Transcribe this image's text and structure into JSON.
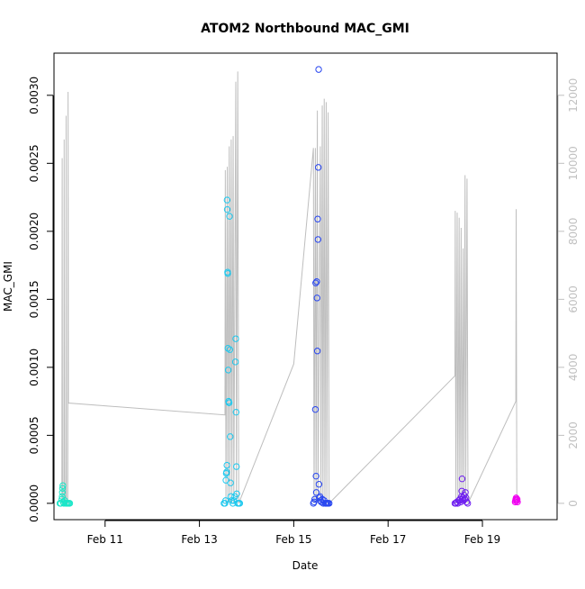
{
  "chart_data": {
    "type": "scatter",
    "title": "ATOM2 Northbound MAC_GMI",
    "xlabel": "Date",
    "ylabel": "MAC_GMI",
    "x_axis": {
      "type": "date",
      "range": [
        "2019-02-09T22:00",
        "2019-02-20T14:00"
      ],
      "ticks": [
        {
          "date": "2019-02-11T00:00",
          "label": "Feb 11"
        },
        {
          "date": "2019-02-13T00:00",
          "label": "Feb 13"
        },
        {
          "date": "2019-02-15T00:00",
          "label": "Feb 15"
        },
        {
          "date": "2019-02-17T00:00",
          "label": "Feb 17"
        },
        {
          "date": "2019-02-19T00:00",
          "label": "Feb 19"
        }
      ]
    },
    "y_left": {
      "range": [
        -0.00012,
        0.00331
      ],
      "ticks": [
        {
          "value": 0,
          "label": "0.0000"
        },
        {
          "value": 0.0005,
          "label": "0.0005"
        },
        {
          "value": 0.001,
          "label": "0.0010"
        },
        {
          "value": 0.0015,
          "label": "0.0015"
        },
        {
          "value": 0.002,
          "label": "0.0020"
        },
        {
          "value": 0.0025,
          "label": "0.0025"
        },
        {
          "value": 0.003,
          "label": "0.0030"
        }
      ]
    },
    "y_right": {
      "range": [
        -480,
        13240
      ],
      "ticks": [
        {
          "value": 0,
          "label": "0"
        },
        {
          "value": 2000,
          "label": "2000"
        },
        {
          "value": 4000,
          "label": "4000"
        },
        {
          "value": 6000,
          "label": "6000"
        },
        {
          "value": 8000,
          "label": "8000"
        },
        {
          "value": 10000,
          "label": "10000"
        },
        {
          "value": 12000,
          "label": "12000"
        }
      ],
      "color": "#c0c0c0"
    },
    "line_series": {
      "axis": "right",
      "color": "#bebebe",
      "points": [
        [
          "2019-02-10T02:00",
          0
        ],
        [
          "2019-02-10T02:10",
          10150
        ],
        [
          "2019-02-10T02:20",
          0
        ],
        [
          "2019-02-10T03:00",
          0
        ],
        [
          "2019-02-10T03:10",
          10700
        ],
        [
          "2019-02-10T03:20",
          0
        ],
        [
          "2019-02-10T04:00",
          0
        ],
        [
          "2019-02-10T04:10",
          11400
        ],
        [
          "2019-02-10T04:20",
          0
        ],
        [
          "2019-02-10T05:00",
          0
        ],
        [
          "2019-02-10T05:10",
          12100
        ],
        [
          "2019-02-10T05:20",
          2950
        ],
        [
          "2019-02-13T13:00",
          2600
        ],
        [
          "2019-02-13T13:10",
          9800
        ],
        [
          "2019-02-13T13:30",
          0
        ],
        [
          "2019-02-13T14:10",
          9900
        ],
        [
          "2019-02-13T14:30",
          0
        ],
        [
          "2019-02-13T15:10",
          10500
        ],
        [
          "2019-02-13T15:30",
          0
        ],
        [
          "2019-02-13T16:10",
          10700
        ],
        [
          "2019-02-13T16:30",
          0
        ],
        [
          "2019-02-13T17:10",
          10800
        ],
        [
          "2019-02-13T17:30",
          0
        ],
        [
          "2019-02-13T18:30",
          12400
        ],
        [
          "2019-02-13T18:50",
          0
        ],
        [
          "2019-02-13T19:30",
          12700
        ],
        [
          "2019-02-13T20:00",
          0
        ],
        [
          "2019-02-15T00:00",
          4100
        ],
        [
          "2019-02-15T10:00",
          10450
        ],
        [
          "2019-02-15T10:20",
          0
        ],
        [
          "2019-02-15T11:00",
          10450
        ],
        [
          "2019-02-15T11:20",
          0
        ],
        [
          "2019-02-15T12:00",
          11550
        ],
        [
          "2019-02-15T12:20",
          0
        ],
        [
          "2019-02-15T13:30",
          10500
        ],
        [
          "2019-02-15T13:50",
          0
        ],
        [
          "2019-02-15T14:30",
          11700
        ],
        [
          "2019-02-15T14:50",
          0
        ],
        [
          "2019-02-15T15:30",
          11900
        ],
        [
          "2019-02-15T15:50",
          0
        ],
        [
          "2019-02-15T16:30",
          11800
        ],
        [
          "2019-02-15T16:50",
          0
        ],
        [
          "2019-02-15T17:30",
          11500
        ],
        [
          "2019-02-15T18:00",
          0
        ],
        [
          "2019-02-18T10:00",
          3750
        ],
        [
          "2019-02-18T10:10",
          8600
        ],
        [
          "2019-02-18T10:30",
          0
        ],
        [
          "2019-02-18T11:10",
          8550
        ],
        [
          "2019-02-18T11:30",
          0
        ],
        [
          "2019-02-18T12:10",
          8400
        ],
        [
          "2019-02-18T12:30",
          0
        ],
        [
          "2019-02-18T13:10",
          8100
        ],
        [
          "2019-02-18T13:30",
          0
        ],
        [
          "2019-02-18T14:10",
          7500
        ],
        [
          "2019-02-18T14:30",
          0
        ],
        [
          "2019-02-18T15:10",
          9650
        ],
        [
          "2019-02-18T15:30",
          0
        ],
        [
          "2019-02-18T16:10",
          9550
        ],
        [
          "2019-02-18T16:40",
          0
        ],
        [
          "2019-02-19T17:00",
          3000
        ],
        [
          "2019-02-19T17:10",
          8650
        ],
        [
          "2019-02-19T17:30",
          0
        ]
      ]
    },
    "scatter_series": [
      {
        "color": "#19e6c8",
        "points": [
          [
            "2019-02-10T01:00",
            0
          ],
          [
            "2019-02-10T01:30",
            0
          ],
          [
            "2019-02-10T02:00",
            3e-05
          ],
          [
            "2019-02-10T02:10",
            5e-05
          ],
          [
            "2019-02-10T02:15",
            8e-05
          ],
          [
            "2019-02-10T02:20",
            0.00011
          ],
          [
            "2019-02-10T02:30",
            0.00013
          ],
          [
            "2019-02-10T02:40",
            1e-05
          ],
          [
            "2019-02-10T03:00",
            0
          ],
          [
            "2019-02-10T03:30",
            2e-05
          ],
          [
            "2019-02-10T04:00",
            0
          ],
          [
            "2019-02-10T04:30",
            0
          ],
          [
            "2019-02-10T05:00",
            0
          ],
          [
            "2019-02-10T05:30",
            0
          ],
          [
            "2019-02-10T06:00",
            0
          ]
        ]
      },
      {
        "color": "#1ec8ee",
        "points": [
          [
            "2019-02-13T12:30",
            0
          ],
          [
            "2019-02-13T13:00",
            0
          ],
          [
            "2019-02-13T13:20",
            2e-05
          ],
          [
            "2019-02-13T13:30",
            0.00017
          ],
          [
            "2019-02-13T13:40",
            0.00022
          ],
          [
            "2019-02-13T13:50",
            0.00023
          ],
          [
            "2019-02-13T14:00",
            0.00028
          ],
          [
            "2019-02-13T14:05",
            0.00223
          ],
          [
            "2019-02-13T14:10",
            0.00216
          ],
          [
            "2019-02-13T14:20",
            0.0017
          ],
          [
            "2019-02-13T14:25",
            0.00169
          ],
          [
            "2019-02-13T14:30",
            0.00114
          ],
          [
            "2019-02-13T14:40",
            0.00098
          ],
          [
            "2019-02-13T14:50",
            0.00075
          ],
          [
            "2019-02-13T15:00",
            0.00074
          ],
          [
            "2019-02-13T15:10",
            0.00074
          ],
          [
            "2019-02-13T15:20",
            0.00211
          ],
          [
            "2019-02-13T15:30",
            0.00113
          ],
          [
            "2019-02-13T15:40",
            0.00049
          ],
          [
            "2019-02-13T15:50",
            0.00015
          ],
          [
            "2019-02-13T16:00",
            5e-05
          ],
          [
            "2019-02-13T16:30",
            2e-05
          ],
          [
            "2019-02-13T17:00",
            0
          ],
          [
            "2019-02-13T17:30",
            2e-05
          ],
          [
            "2019-02-13T18:00",
            5e-05
          ],
          [
            "2019-02-13T18:20",
            0.00104
          ],
          [
            "2019-02-13T18:30",
            0.00121
          ],
          [
            "2019-02-13T18:40",
            0.00067
          ],
          [
            "2019-02-13T18:50",
            0.00027
          ],
          [
            "2019-02-13T19:00",
            7e-05
          ],
          [
            "2019-02-13T19:30",
            0
          ],
          [
            "2019-02-13T20:00",
            0
          ],
          [
            "2019-02-13T20:30",
            0
          ]
        ]
      },
      {
        "color": "#2846f0",
        "points": [
          [
            "2019-02-15T10:00",
            0
          ],
          [
            "2019-02-15T10:20",
            1e-05
          ],
          [
            "2019-02-15T10:40",
            3e-05
          ],
          [
            "2019-02-15T11:00",
            0.00069
          ],
          [
            "2019-02-15T11:10",
            0.00162
          ],
          [
            "2019-02-15T11:20",
            0.0002
          ],
          [
            "2019-02-15T11:30",
            8e-05
          ],
          [
            "2019-02-15T11:40",
            0.00163
          ],
          [
            "2019-02-15T11:50",
            0.00151
          ],
          [
            "2019-02-15T12:00",
            0.00112
          ],
          [
            "2019-02-15T12:10",
            0.00209
          ],
          [
            "2019-02-15T12:20",
            0.00194
          ],
          [
            "2019-02-15T12:30",
            0.00247
          ],
          [
            "2019-02-15T12:40",
            0.00319
          ],
          [
            "2019-02-15T12:50",
            0.00014
          ],
          [
            "2019-02-15T13:00",
            4e-05
          ],
          [
            "2019-02-15T13:20",
            5e-05
          ],
          [
            "2019-02-15T13:40",
            2e-05
          ],
          [
            "2019-02-15T14:00",
            1e-05
          ],
          [
            "2019-02-15T14:30",
            3e-05
          ],
          [
            "2019-02-15T15:00",
            0
          ],
          [
            "2019-02-15T15:30",
            2e-05
          ],
          [
            "2019-02-15T16:00",
            0
          ],
          [
            "2019-02-15T16:30",
            0
          ],
          [
            "2019-02-15T17:00",
            0
          ],
          [
            "2019-02-15T17:30",
            0
          ],
          [
            "2019-02-15T18:00",
            0
          ]
        ]
      },
      {
        "color": "#6e1ef0",
        "points": [
          [
            "2019-02-18T10:00",
            0
          ],
          [
            "2019-02-18T10:30",
            0
          ],
          [
            "2019-02-18T11:00",
            1e-05
          ],
          [
            "2019-02-18T11:30",
            0
          ],
          [
            "2019-02-18T12:00",
            2e-05
          ],
          [
            "2019-02-18T12:30",
            3e-05
          ],
          [
            "2019-02-18T13:00",
            1e-05
          ],
          [
            "2019-02-18T13:20",
            5e-05
          ],
          [
            "2019-02-18T13:30",
            9e-05
          ],
          [
            "2019-02-18T13:40",
            0.00018
          ],
          [
            "2019-02-18T13:50",
            3e-05
          ],
          [
            "2019-02-18T14:00",
            4e-05
          ],
          [
            "2019-02-18T14:20",
            2e-05
          ],
          [
            "2019-02-18T14:40",
            6e-05
          ],
          [
            "2019-02-18T15:00",
            3e-05
          ],
          [
            "2019-02-18T15:20",
            8e-05
          ],
          [
            "2019-02-18T15:40",
            4e-05
          ],
          [
            "2019-02-18T16:00",
            1e-05
          ],
          [
            "2019-02-18T16:30",
            0
          ]
        ]
      },
      {
        "color": "#f000f0",
        "points": [
          [
            "2019-02-19T16:40",
            1e-05
          ],
          [
            "2019-02-19T16:50",
            2e-05
          ],
          [
            "2019-02-19T17:00",
            3e-05
          ],
          [
            "2019-02-19T17:10",
            4e-05
          ],
          [
            "2019-02-19T17:20",
            3e-05
          ],
          [
            "2019-02-19T17:30",
            2e-05
          ],
          [
            "2019-02-19T17:40",
            3e-05
          ],
          [
            "2019-02-19T17:50",
            1e-05
          ]
        ]
      }
    ]
  }
}
